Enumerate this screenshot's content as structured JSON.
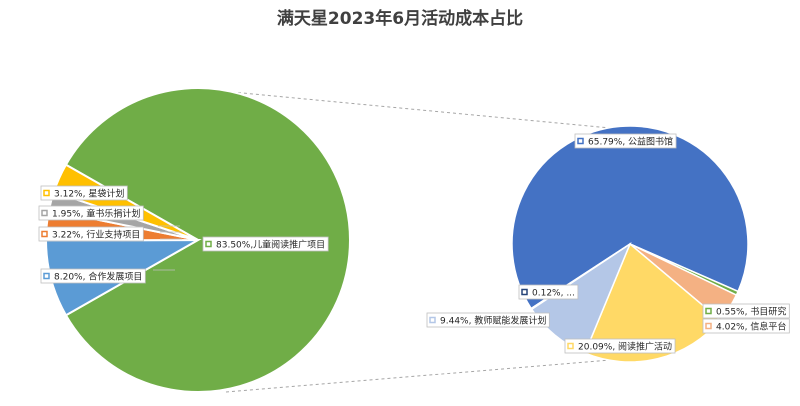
{
  "chart_data": {
    "type": "pie",
    "subtype": "pie-of-pie",
    "title": "满天星2023年6月活动成本占比",
    "main_pie": {
      "slices": [
        {
          "label": "83.50%,儿童阅读推广项目",
          "value": 83.5,
          "color": "#70ad47"
        },
        {
          "label": "8.20%, 合作发展项目",
          "value": 8.2,
          "color": "#5b9bd5"
        },
        {
          "label": "3.22%, 行业支持项目",
          "value": 3.22,
          "color": "#ed7d31"
        },
        {
          "label": "1.95%, 童书乐捐计划",
          "value": 1.95,
          "color": "#a5a5a5"
        },
        {
          "label": "3.12%, 星袋计划",
          "value": 3.12,
          "color": "#ffc000"
        }
      ]
    },
    "sub_pie": {
      "slices": [
        {
          "label": "65.79%, 公益图书馆",
          "value": 65.79,
          "color": "#4472c4"
        },
        {
          "label": "0.55%, 书目研究",
          "value": 0.55,
          "color": "#70ad47"
        },
        {
          "label": "4.02%, 信息平台",
          "value": 4.02,
          "color": "#f4b183"
        },
        {
          "label": "20.09%, 阅读推广活动",
          "value": 20.09,
          "color": "#ffd966"
        },
        {
          "label": "9.44%, 教师赋能发展计划",
          "value": 9.44,
          "color": "#b4c7e7"
        },
        {
          "label": "0.12%, ...",
          "value": 0.12,
          "color": "#264478"
        }
      ]
    },
    "legend": "none"
  }
}
